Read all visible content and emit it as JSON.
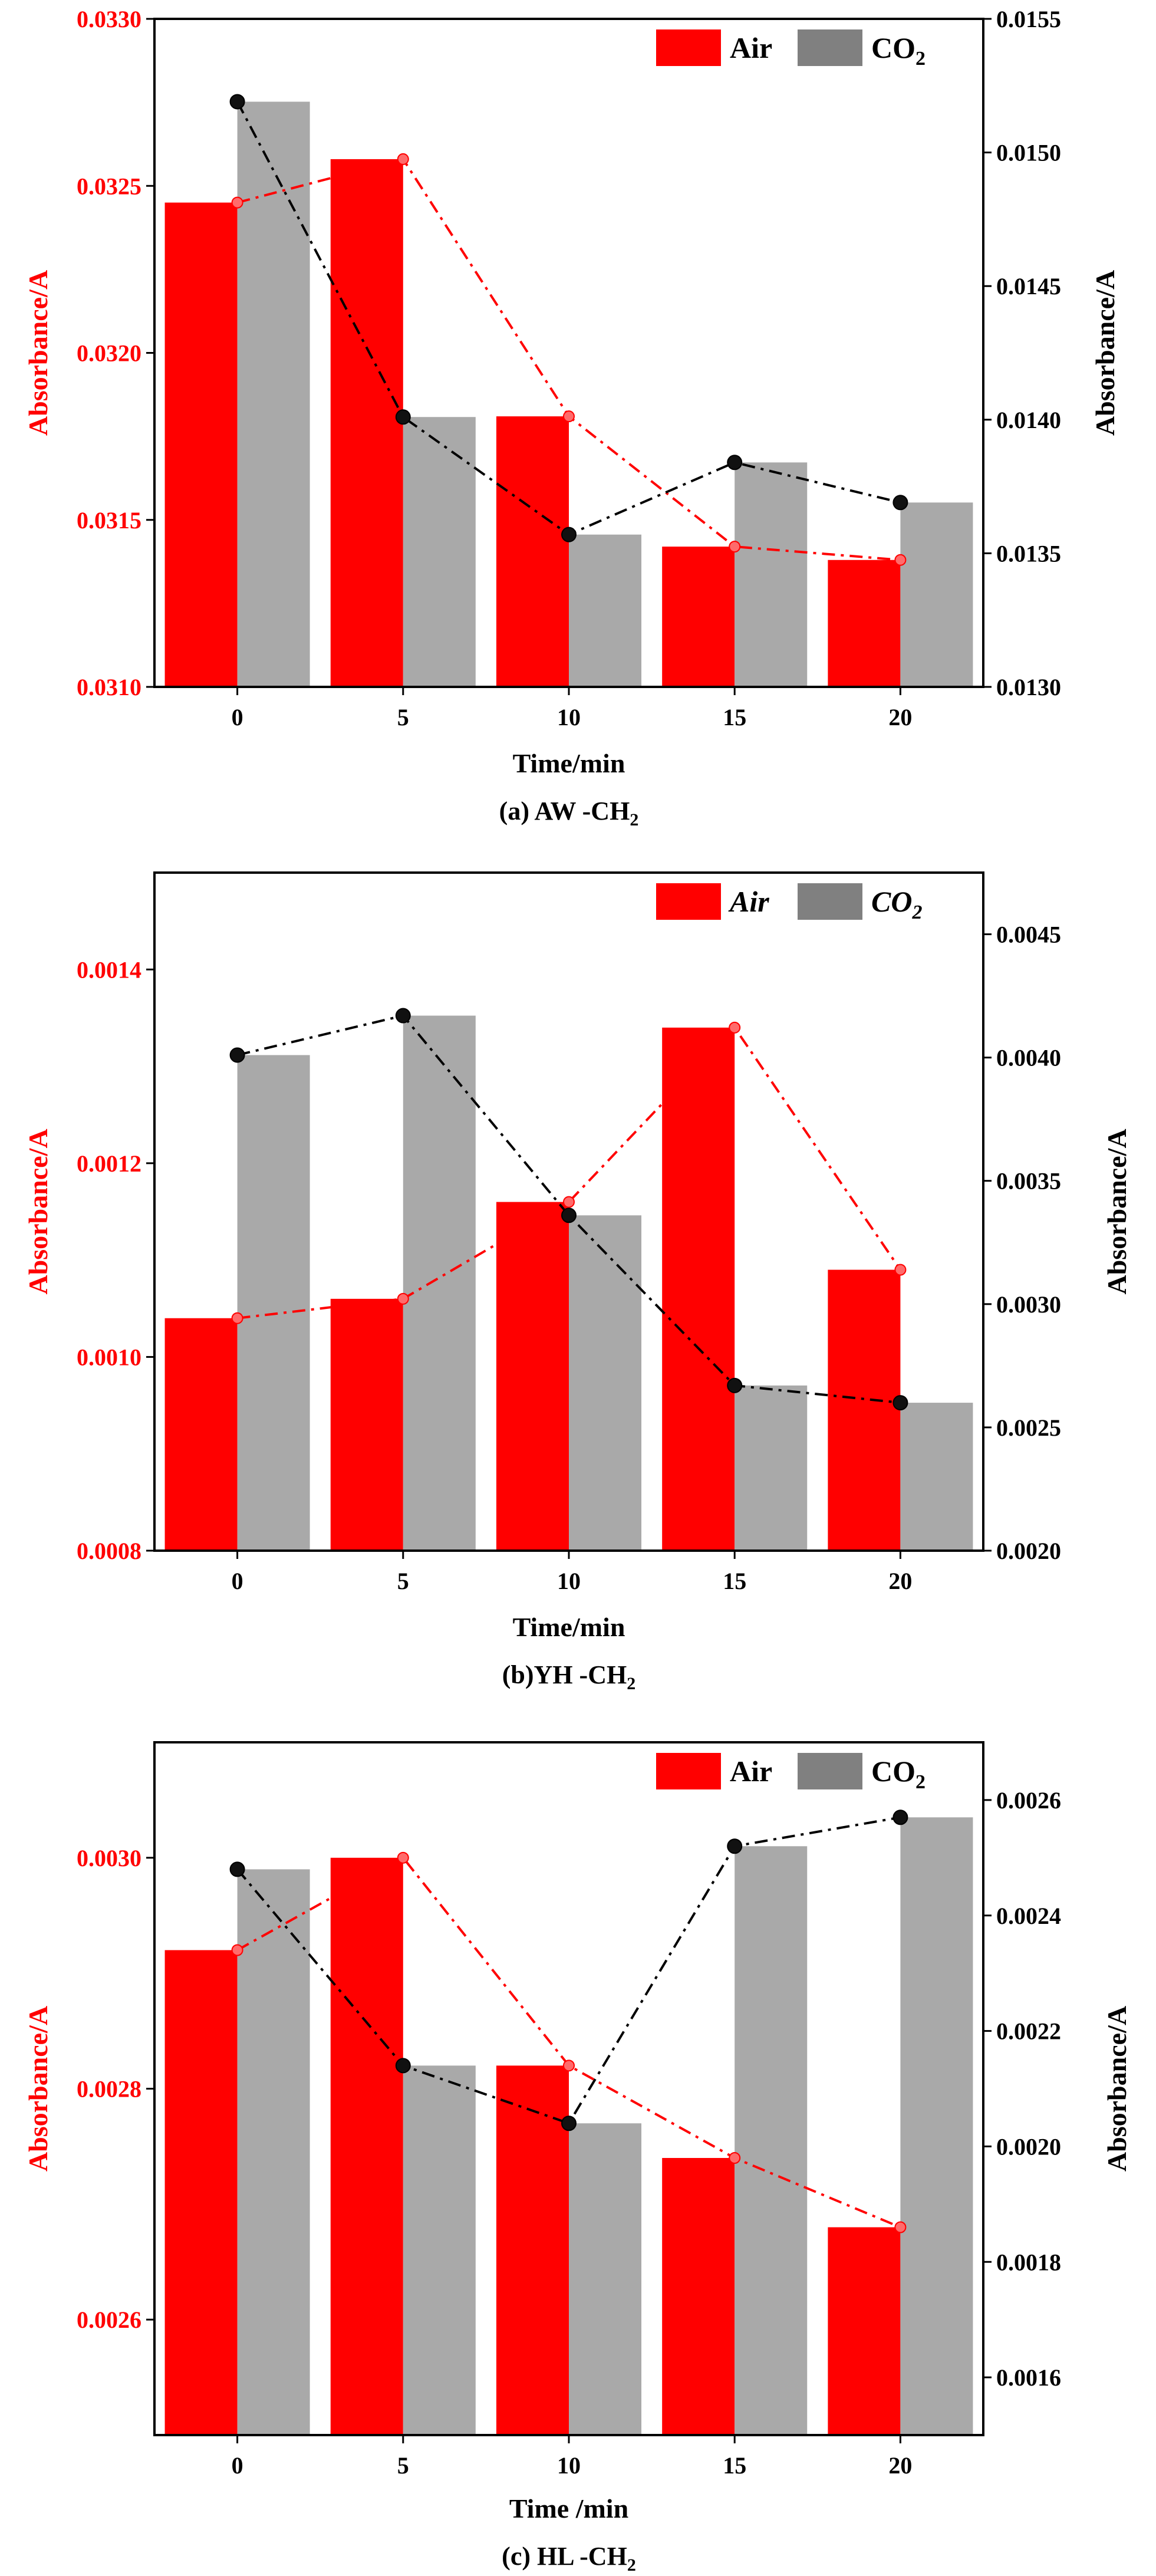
{
  "colors": {
    "air": "#ff0000",
    "co2": "#a9a9a9",
    "co2_legend": "#808080",
    "co2_line": "#000000",
    "axis": "#000000"
  },
  "chart_data": [
    {
      "type": "bar",
      "caption_main": "(a) AW -CH",
      "caption_sub": "2",
      "italic_legend": false,
      "xlabel": "Time/min",
      "categories": [
        "0",
        "5",
        "10",
        "15",
        "20"
      ],
      "left_axis": {
        "label": "Absorbance/A",
        "ylim": [
          0.031,
          0.033
        ],
        "ticks": [
          "0.0310",
          "0.0315",
          "0.0320",
          "0.0325",
          "0.0330"
        ]
      },
      "right_axis": {
        "label": "Absorbance/A",
        "ylim": [
          0.013,
          0.0155
        ],
        "ticks": [
          "0.0130",
          "0.0135",
          "0.0140",
          "0.0145",
          "0.0150",
          "0.0155"
        ]
      },
      "legend": {
        "air": "Air",
        "co2_main": "CO",
        "co2_sub": "2"
      },
      "series": [
        {
          "name": "Air",
          "axis": "left",
          "values": [
            0.03245,
            0.03258,
            0.03181,
            0.03142,
            0.03138
          ]
        },
        {
          "name": "CO2",
          "axis": "right",
          "values": [
            0.01519,
            0.01401,
            0.01357,
            0.01384,
            0.01369
          ]
        }
      ]
    },
    {
      "type": "bar",
      "caption_main": "(b)YH  -CH",
      "caption_sub": "2",
      "italic_legend": true,
      "xlabel": "Time/min",
      "categories": [
        "0",
        "5",
        "10",
        "15",
        "20"
      ],
      "left_axis": {
        "label": "Absorbance/A",
        "ylim": [
          0.0008,
          0.0015
        ],
        "ticks": [
          "0.0008",
          "0.0010",
          "0.0012",
          "0.0014"
        ]
      },
      "right_axis": {
        "label": "Absorbance/A",
        "ylim": [
          0.002,
          0.00475
        ],
        "ticks": [
          "0.0020",
          "0.0025",
          "0.0030",
          "0.0035",
          "0.0040",
          "0.0045"
        ]
      },
      "legend": {
        "air": "Air",
        "co2_main": "CO",
        "co2_sub": "2"
      },
      "series": [
        {
          "name": "Air",
          "axis": "left",
          "values": [
            0.00104,
            0.00106,
            0.00116,
            0.00134,
            0.00109
          ]
        },
        {
          "name": "CO2",
          "axis": "right",
          "values": [
            0.00401,
            0.00417,
            0.00336,
            0.00267,
            0.0026
          ]
        }
      ]
    },
    {
      "type": "bar",
      "caption_main": "(c) HL -CH",
      "caption_sub": "2",
      "italic_legend": false,
      "xlabel": "Time /min",
      "categories": [
        "0",
        "5",
        "10",
        "15",
        "20"
      ],
      "left_axis": {
        "label": "Absorbance/A",
        "ylim": [
          0.0025,
          0.0031
        ],
        "ticks": [
          "0.0026",
          "0.0028",
          "0.0030"
        ]
      },
      "right_axis": {
        "label": "Absorbance/A",
        "ylim": [
          0.0015,
          0.0027
        ],
        "ticks": [
          "0.0016",
          "0.0018",
          "0.0020",
          "0.0022",
          "0.0024",
          "0.0026"
        ]
      },
      "legend": {
        "air": "Air",
        "co2_main": "CO",
        "co2_sub": "2"
      },
      "series": [
        {
          "name": "Air",
          "axis": "left",
          "values": [
            0.00292,
            0.003,
            0.00282,
            0.00274,
            0.00268
          ]
        },
        {
          "name": "CO2",
          "axis": "right",
          "values": [
            0.00248,
            0.00214,
            0.00204,
            0.00252,
            0.00257
          ]
        }
      ]
    }
  ]
}
